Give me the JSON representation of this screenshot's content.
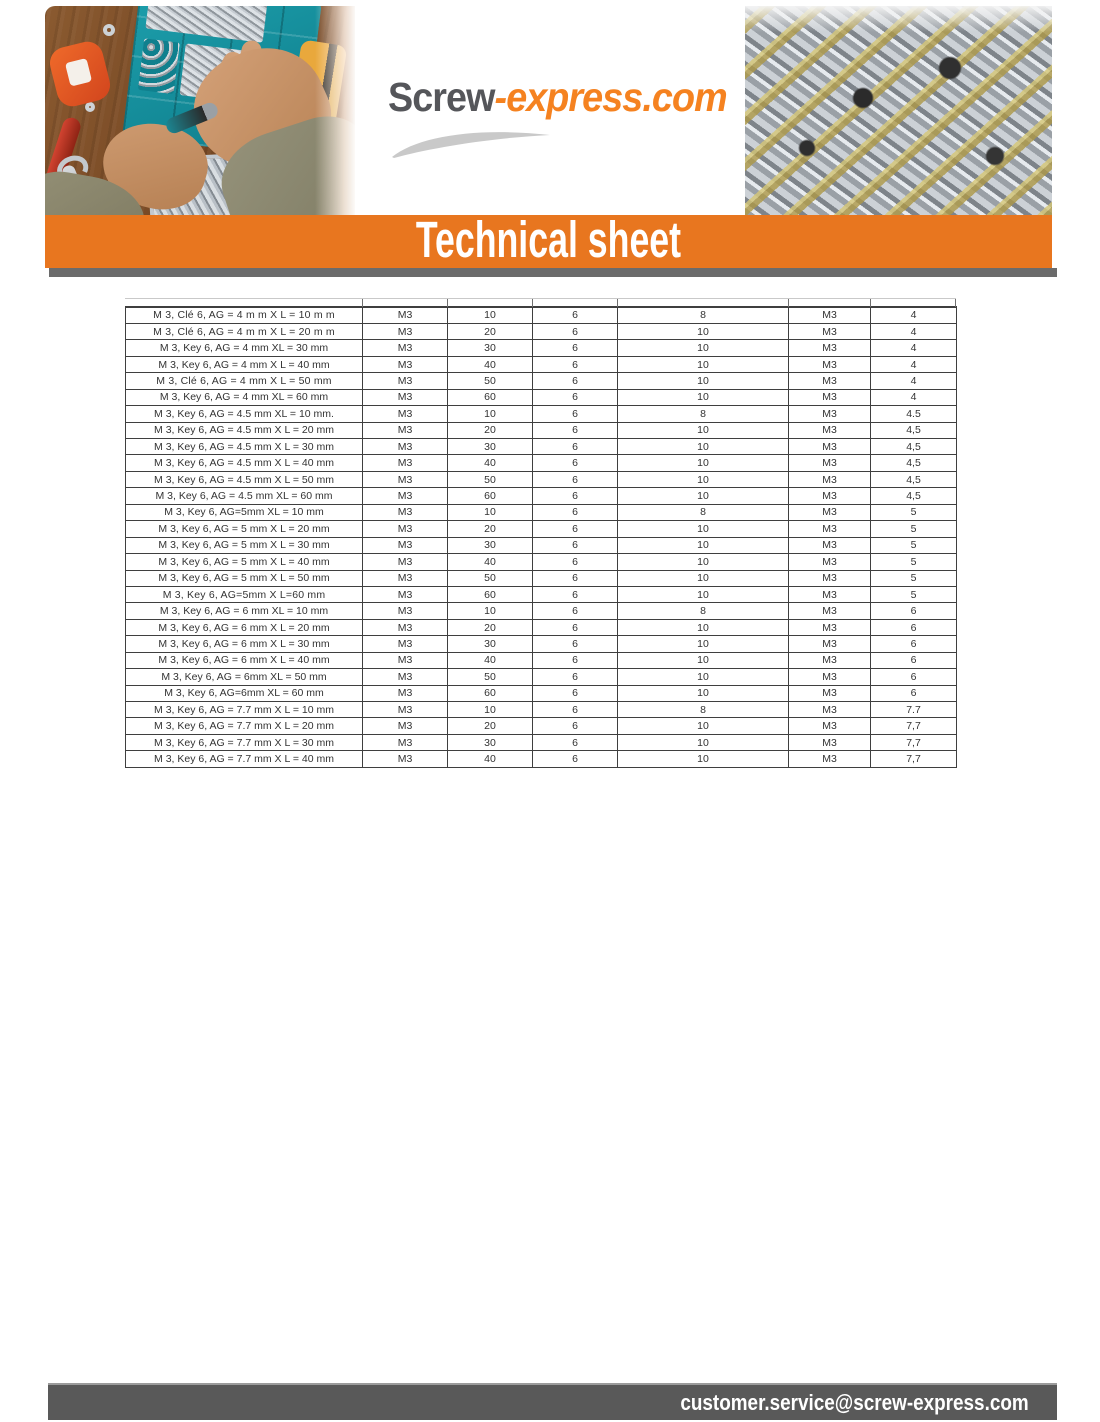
{
  "header": {
    "logo_prefix": "Screw",
    "logo_suffix": "-express.com"
  },
  "banner": {
    "title": "Technical sheet"
  },
  "footer": {
    "email": "customer.service@screw-express.com"
  },
  "colors": {
    "banner_orange": "#E8761F",
    "logo_orange": "#F58220",
    "logo_gray": "#55565A",
    "divider_gray": "#6B6B6B",
    "footer_gray": "#595959",
    "table_border": "#3F3F3F",
    "table_text": "#333333",
    "swoosh_gray": "#C9C9C9"
  },
  "table": {
    "rows": [
      {
        "desc": "M 3, Clé 6, AG = 4 m m X L = 10 m m",
        "thread": "M3",
        "length": "10",
        "key": "6",
        "head": "8",
        "thread2": "M3",
        "diameter": "4",
        "emphasis": "lg"
      },
      {
        "desc": "M 3, Clé 6, AG = 4 m m X L = 20 m m",
        "thread": "M3",
        "length": "20",
        "key": "6",
        "head": "10",
        "thread2": "M3",
        "diameter": "4",
        "emphasis": "lg"
      },
      {
        "desc": "M 3, Key 6, AG = 4 mm XL = 30 mm",
        "thread": "M3",
        "length": "30",
        "key": "6",
        "head": "10",
        "thread2": "M3",
        "diameter": "4",
        "emphasis": "md"
      },
      {
        "desc": "M 3, Key 6, AG = 4 mm X L = 40 mm",
        "thread": "M3",
        "length": "40",
        "key": "6",
        "head": "10",
        "thread2": "M3",
        "diameter": "4",
        "emphasis": "md"
      },
      {
        "desc": "M 3, Clé 6, AG = 4 mm X L = 50 mm",
        "thread": "M3",
        "length": "50",
        "key": "6",
        "head": "10",
        "thread2": "M3",
        "diameter": "4",
        "emphasis": "lg"
      },
      {
        "desc": "M 3, Key 6, AG = 4 mm XL = 60 mm",
        "thread": "M3",
        "length": "60",
        "key": "6",
        "head": "10",
        "thread2": "M3",
        "diameter": "4",
        "emphasis": "sm"
      },
      {
        "desc": "M 3, Key 6, AG = 4.5 mm XL = 10 mm.",
        "thread": "M3",
        "length": "10",
        "key": "6",
        "head": "8",
        "thread2": "M3",
        "diameter": "4.5",
        "emphasis": "sm",
        "dia_size": "sm"
      },
      {
        "desc": "M 3, Key 6, AG = 4.5 mm X L = 20 mm",
        "thread": "M3",
        "length": "20",
        "key": "6",
        "head": "10",
        "thread2": "M3",
        "diameter": "4,5",
        "emphasis": "md"
      },
      {
        "desc": "M 3, Key 6, AG = 4.5 mm X L = 30 mm",
        "thread": "M3",
        "length": "30",
        "key": "6",
        "head": "10",
        "thread2": "M3",
        "diameter": "4,5",
        "emphasis": "md"
      },
      {
        "desc": "M 3, Key 6, AG = 4.5 mm X L = 40 mm",
        "thread": "M3",
        "length": "40",
        "key": "6",
        "head": "10",
        "thread2": "M3",
        "diameter": "4,5",
        "emphasis": "md"
      },
      {
        "desc": "M 3, Key 6, AG = 4.5 mm X L = 50 mm",
        "thread": "M3",
        "length": "50",
        "key": "6",
        "head": "10",
        "thread2": "M3",
        "diameter": "4,5",
        "emphasis": "md"
      },
      {
        "desc": "M 3, Key 6, AG = 4.5 mm XL = 60 mm",
        "thread": "M3",
        "length": "60",
        "key": "6",
        "head": "10",
        "thread2": "M3",
        "diameter": "4,5",
        "emphasis": "md"
      },
      {
        "desc": "M 3, Key 6, AG=5mm XL = 10 mm",
        "thread": "M3",
        "length": "10",
        "key": "6",
        "head": "8",
        "thread2": "M3",
        "diameter": "5",
        "emphasis": "md"
      },
      {
        "desc": "M 3, Key 6, AG = 5 mm X L = 20 mm",
        "thread": "M3",
        "length": "20",
        "key": "6",
        "head": "10",
        "thread2": "M3",
        "diameter": "5",
        "emphasis": "md"
      },
      {
        "desc": "M 3, Key 6, AG = 5 mm X L = 30 mm",
        "thread": "M3",
        "length": "30",
        "key": "6",
        "head": "10",
        "thread2": "M3",
        "diameter": "5",
        "emphasis": "xs"
      },
      {
        "desc": "M 3, Key 6, AG = 5 mm X L = 40 mm",
        "thread": "M3",
        "length": "40",
        "key": "6",
        "head": "10",
        "thread2": "M3",
        "diameter": "5",
        "emphasis": "md"
      },
      {
        "desc": "M 3, Key 6, AG = 5 mm X L = 50 mm",
        "thread": "M3",
        "length": "50",
        "key": "6",
        "head": "10",
        "thread2": "M3",
        "diameter": "5",
        "emphasis": "sm"
      },
      {
        "desc": "M 3, Key 6, AG=5mm X L=60 mm",
        "thread": "M3",
        "length": "60",
        "key": "6",
        "head": "10",
        "thread2": "M3",
        "diameter": "5",
        "emphasis": "lg"
      },
      {
        "desc": "M 3, Key 6, AG = 6 mm XL = 10 mm",
        "thread": "M3",
        "length": "10",
        "key": "6",
        "head": "8",
        "thread2": "M3",
        "diameter": "6",
        "emphasis": "sm"
      },
      {
        "desc": "M 3, Key 6, AG = 6 mm X L = 20 mm",
        "thread": "M3",
        "length": "20",
        "key": "6",
        "head": "10",
        "thread2": "M3",
        "diameter": "6",
        "emphasis": "sm"
      },
      {
        "desc": "M 3, Key 6, AG = 6 mm X L = 30 mm",
        "thread": "M3",
        "length": "30",
        "key": "6",
        "head": "10",
        "thread2": "M3",
        "diameter": "6",
        "emphasis": "sm"
      },
      {
        "desc": "M 3, Key 6, AG = 6 mm X L = 40 mm",
        "thread": "M3",
        "length": "40",
        "key": "6",
        "head": "10",
        "thread2": "M3",
        "diameter": "6",
        "emphasis": "md"
      },
      {
        "desc": "M 3, Key 6, AG = 6mm XL = 50 mm",
        "thread": "M3",
        "length": "50",
        "key": "6",
        "head": "10",
        "thread2": "M3",
        "diameter": "6",
        "emphasis": "md"
      },
      {
        "desc": "M 3, Key 6, AG=6mm XL = 60 mm",
        "thread": "M3",
        "length": "60",
        "key": "6",
        "head": "10",
        "thread2": "M3",
        "diameter": "6",
        "emphasis": "md"
      },
      {
        "desc": "M 3, Key 6, AG = 7.7 mm X L = 10 mm",
        "thread": "M3",
        "length": "10",
        "key": "6",
        "head": "8",
        "thread2": "M3",
        "diameter": "7.7",
        "emphasis": "sm",
        "dia_size": "sm"
      },
      {
        "desc": "M 3, Key 6, AG = 7.7 mm X L = 20 mm",
        "thread": "M3",
        "length": "20",
        "key": "6",
        "head": "10",
        "thread2": "M3",
        "diameter": "7,7",
        "emphasis": "sm"
      },
      {
        "desc": "M 3, Key 6, AG = 7.7 mm X L = 30 mm",
        "thread": "M3",
        "length": "30",
        "key": "6",
        "head": "10",
        "thread2": "M3",
        "diameter": "7,7",
        "emphasis": "sm",
        "dia_size": "xs"
      },
      {
        "desc": "M 3, Key 6, AG = 7.7 mm X L = 40 mm",
        "thread": "M3",
        "length": "40",
        "key": "6",
        "head": "10",
        "thread2": "M3",
        "diameter": "7,7",
        "emphasis": "sm"
      }
    ]
  }
}
